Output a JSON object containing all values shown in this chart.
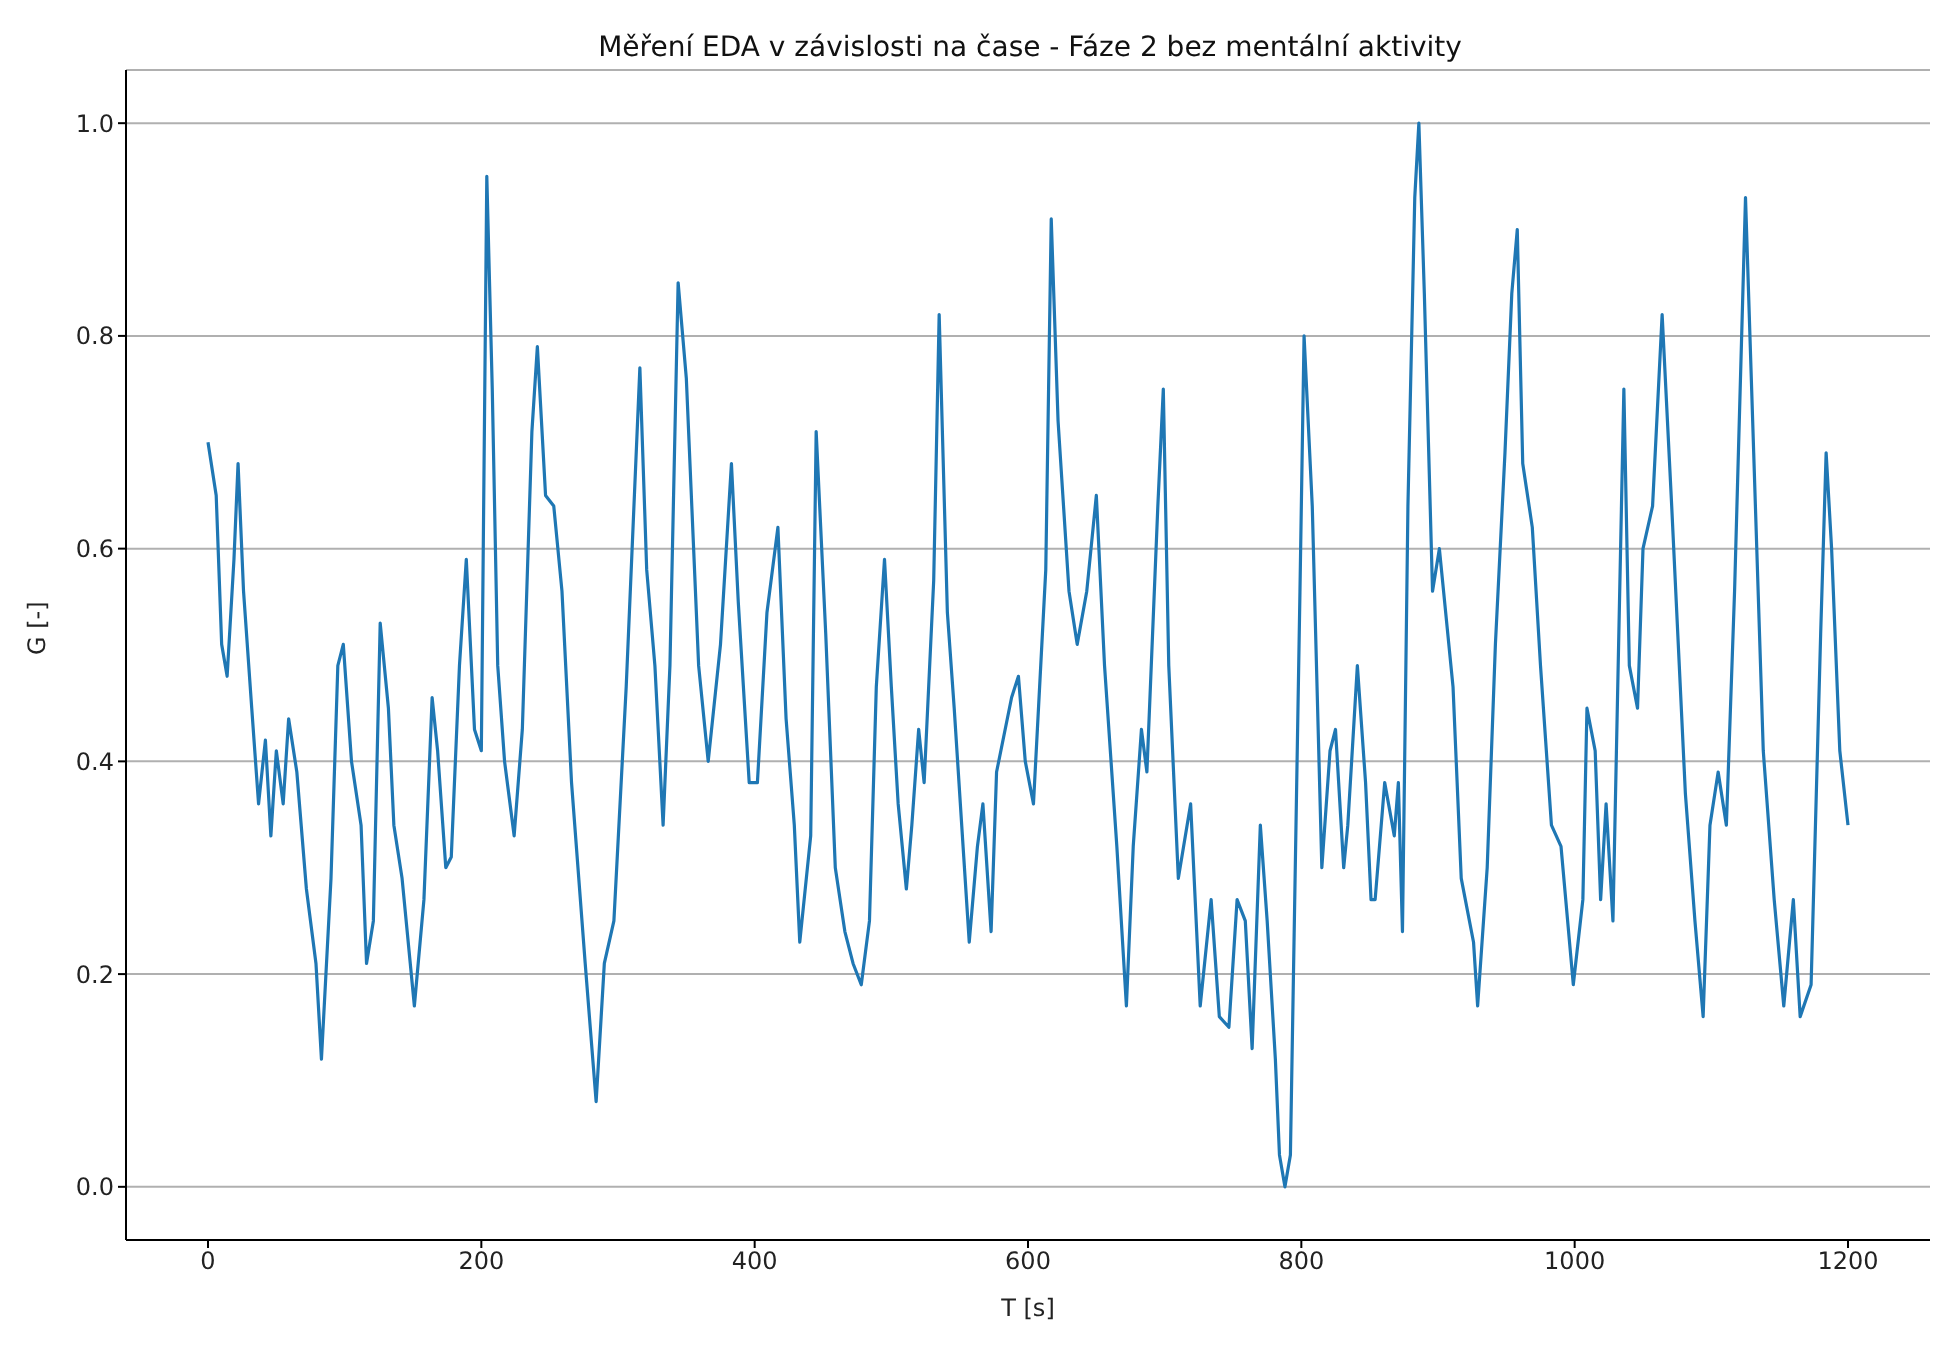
{
  "chart_data": {
    "type": "line",
    "title": "Měření EDA v závislosti na čase - Fáze 2 bez mentální aktivity",
    "xlabel": "T [s]",
    "ylabel": "G [-]",
    "x": [
      0,
      6,
      10,
      14,
      19,
      22,
      26,
      32,
      37,
      42,
      46,
      50,
      55,
      59,
      65,
      72,
      79,
      83,
      90,
      95,
      99,
      105,
      112,
      116,
      121,
      126,
      132,
      136,
      142,
      151,
      158,
      164,
      168,
      174,
      178,
      184,
      189,
      195,
      200,
      204,
      208,
      212,
      217,
      224,
      230,
      237,
      241,
      247,
      253,
      259,
      266,
      276,
      284,
      290,
      297,
      306,
      316,
      321,
      327,
      333,
      338,
      344,
      350,
      359,
      366,
      375,
      383,
      388,
      396,
      402,
      409,
      417,
      423,
      429,
      433,
      441,
      445,
      452,
      459,
      466,
      472,
      478,
      484,
      489,
      495,
      500,
      505,
      511,
      515,
      520,
      524,
      531,
      535,
      541,
      546,
      553,
      557,
      563,
      567,
      573,
      577,
      588,
      593,
      598,
      604,
      613,
      617,
      622,
      630,
      636,
      643,
      650,
      656,
      665,
      672,
      677,
      683,
      687,
      695,
      699,
      703,
      710,
      719,
      726,
      734,
      740,
      747,
      753,
      759,
      764,
      770,
      775,
      781,
      784,
      788,
      792,
      799,
      802,
      808,
      815,
      821,
      825,
      831,
      834,
      841,
      847,
      851,
      854,
      861,
      868,
      871,
      874,
      878,
      883,
      886,
      890,
      896,
      901,
      911,
      917,
      926,
      929,
      936,
      942,
      949,
      954,
      958,
      962,
      969,
      975,
      983,
      990,
      999,
      1006,
      1009,
      1015,
      1019,
      1023,
      1028,
      1036,
      1040,
      1046,
      1050,
      1057,
      1064,
      1071,
      1081,
      1088,
      1094,
      1099,
      1105,
      1111,
      1117,
      1125,
      1131,
      1138,
      1146,
      1153,
      1160,
      1165,
      1173,
      1180,
      1184,
      1188,
      1194,
      1200
    ],
    "series": [
      {
        "color": "#1f77b4",
        "values": [
          0.7,
          0.65,
          0.51,
          0.48,
          0.59,
          0.68,
          0.56,
          0.45,
          0.36,
          0.42,
          0.33,
          0.41,
          0.36,
          0.44,
          0.39,
          0.28,
          0.21,
          0.12,
          0.29,
          0.49,
          0.51,
          0.4,
          0.34,
          0.21,
          0.25,
          0.53,
          0.45,
          0.34,
          0.29,
          0.17,
          0.27,
          0.46,
          0.41,
          0.3,
          0.31,
          0.49,
          0.59,
          0.43,
          0.41,
          0.95,
          0.75,
          0.49,
          0.4,
          0.33,
          0.43,
          0.71,
          0.79,
          0.65,
          0.64,
          0.56,
          0.38,
          0.21,
          0.08,
          0.21,
          0.25,
          0.47,
          0.77,
          0.58,
          0.49,
          0.34,
          0.49,
          0.85,
          0.76,
          0.49,
          0.4,
          0.51,
          0.68,
          0.55,
          0.38,
          0.38,
          0.54,
          0.62,
          0.44,
          0.34,
          0.23,
          0.33,
          0.71,
          0.52,
          0.3,
          0.24,
          0.21,
          0.19,
          0.25,
          0.47,
          0.59,
          0.47,
          0.36,
          0.28,
          0.34,
          0.43,
          0.38,
          0.57,
          0.82,
          0.54,
          0.45,
          0.31,
          0.23,
          0.32,
          0.36,
          0.24,
          0.39,
          0.46,
          0.48,
          0.4,
          0.36,
          0.58,
          0.91,
          0.72,
          0.56,
          0.51,
          0.56,
          0.65,
          0.49,
          0.32,
          0.17,
          0.32,
          0.43,
          0.39,
          0.64,
          0.75,
          0.49,
          0.29,
          0.36,
          0.17,
          0.27,
          0.16,
          0.15,
          0.27,
          0.25,
          0.13,
          0.34,
          0.25,
          0.12,
          0.03,
          0.0,
          0.03,
          0.56,
          0.8,
          0.64,
          0.3,
          0.41,
          0.43,
          0.3,
          0.34,
          0.49,
          0.38,
          0.27,
          0.27,
          0.38,
          0.33,
          0.38,
          0.24,
          0.64,
          0.93,
          1.0,
          0.84,
          0.56,
          0.6,
          0.47,
          0.29,
          0.23,
          0.17,
          0.3,
          0.51,
          0.69,
          0.84,
          0.9,
          0.68,
          0.62,
          0.49,
          0.34,
          0.32,
          0.19,
          0.27,
          0.45,
          0.41,
          0.27,
          0.36,
          0.25,
          0.75,
          0.49,
          0.45,
          0.6,
          0.64,
          0.82,
          0.64,
          0.37,
          0.25,
          0.16,
          0.34,
          0.39,
          0.34,
          0.56,
          0.93,
          0.69,
          0.41,
          0.27,
          0.17,
          0.27,
          0.16,
          0.19,
          0.52,
          0.69,
          0.6,
          0.41,
          0.34
        ]
      }
    ],
    "xlim": [
      -60,
      1260
    ],
    "xticks": [
      0,
      200,
      400,
      600,
      800,
      1000,
      1200
    ],
    "ylim": [
      -0.05,
      1.05
    ],
    "yticks": [
      {
        "value": 0,
        "label": "0.0"
      },
      {
        "value": 0.2,
        "label": "0.2"
      },
      {
        "value": 0.4,
        "label": "0.4"
      },
      {
        "value": 0.6,
        "label": "0.6"
      },
      {
        "value": 0.8,
        "label": "0.8"
      },
      {
        "value": 1,
        "label": "1.0"
      }
    ],
    "grid": "y"
  }
}
